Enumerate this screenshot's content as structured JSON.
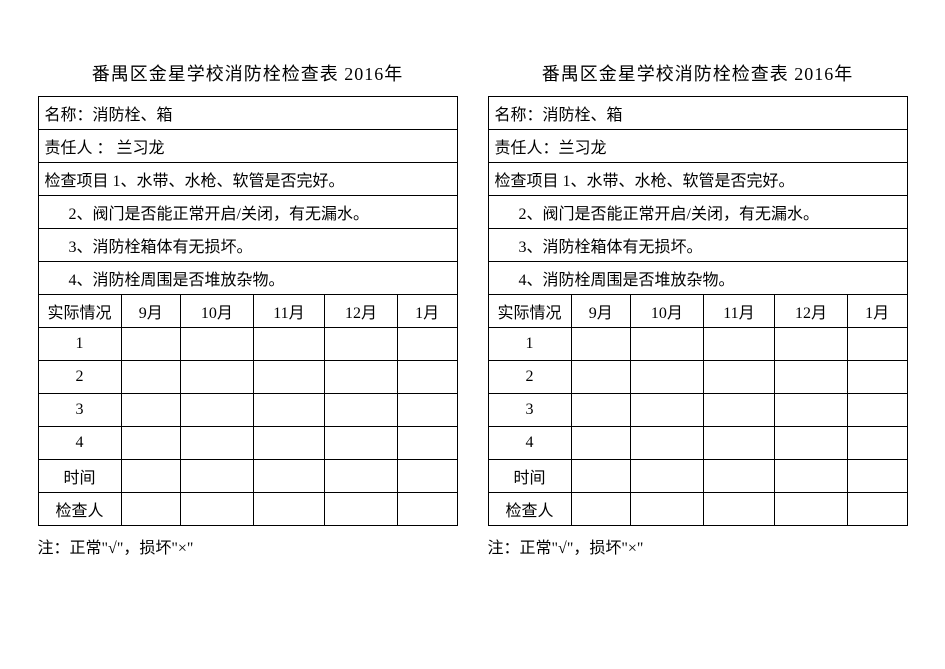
{
  "forms": [
    {
      "title": "番禺区金星学校消防栓检查表 2016年",
      "name_row": "名称：消防栓、箱",
      "person_row": "责任人 ： 兰习龙",
      "check_header": "检查项目 1、水带、水枪、软管是否完好。",
      "check_items": [
        "2、阀门是否能正常开启/关闭，有无漏水。",
        "3、消防栓箱体有无损坏。",
        "4、消防栓周围是否堆放杂物。"
      ],
      "status_header": "实际情况",
      "months": [
        "9月",
        "10月",
        "11月",
        "12月",
        "1月"
      ],
      "row_labels": [
        "1",
        "2",
        "3",
        "4",
        "时间",
        "检查人"
      ],
      "note": "注：正常\"√\"，损坏\"×\""
    },
    {
      "title": "番禺区金星学校消防栓检查表 2016年",
      "name_row": "名称：消防栓、箱",
      "person_row": "责任人：兰习龙",
      "check_header": "检查项目 1、水带、水枪、软管是否完好。",
      "check_items": [
        "2、阀门是否能正常开启/关闭，有无漏水。",
        "3、消防栓箱体有无损坏。",
        "4、消防栓周围是否堆放杂物。"
      ],
      "status_header": "实际情况",
      "months": [
        "9月",
        "10月",
        "11月",
        "12月",
        "1月"
      ],
      "row_labels": [
        "1",
        "2",
        "3",
        "4",
        "时间",
        "检查人"
      ],
      "note": "注：正常\"√\"，损坏\"×\""
    }
  ],
  "colors": {
    "background": "#ffffff",
    "text": "#000000",
    "border": "#000000"
  },
  "fontsize_title": 18,
  "fontsize_cell": 16
}
